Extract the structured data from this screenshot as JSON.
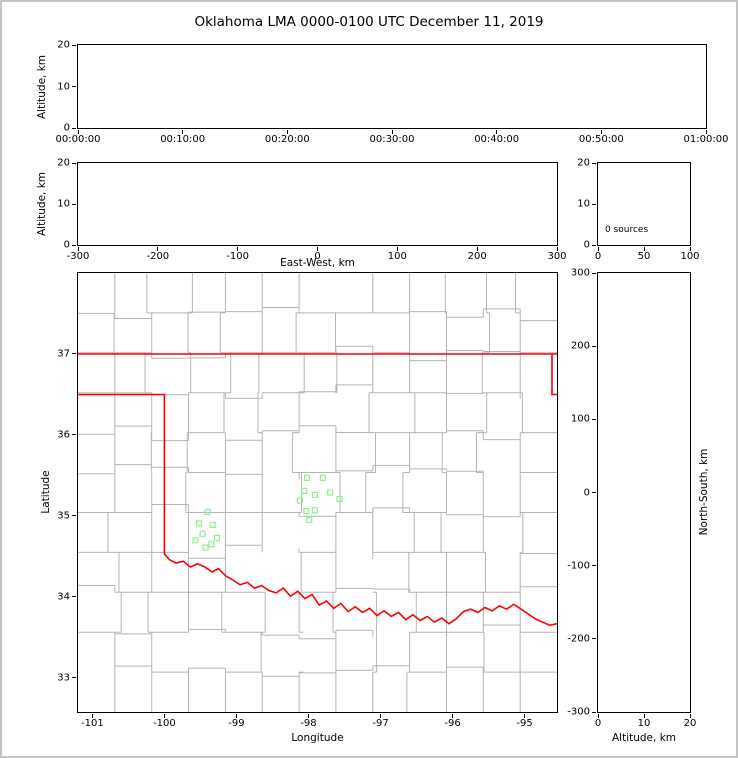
{
  "title": "Oklahoma LMA 0000-0100 UTC December 11, 2019",
  "chart_data": [
    {
      "panel": "time_height",
      "type": "scatter",
      "xlabel": "",
      "ylabel": "Altitude, km",
      "xticks": [
        "00:00:00",
        "00:10:00",
        "00:20:00",
        "00:30:00",
        "00:40:00",
        "00:50:00",
        "01:00:00"
      ],
      "yticks": [
        20,
        10,
        0
      ],
      "ylim": [
        0,
        20
      ],
      "series": []
    },
    {
      "panel": "east_west_height",
      "type": "scatter",
      "xlabel": "East-West, km",
      "ylabel": "Altitude, km",
      "xticks": [
        -300,
        -200,
        -100,
        0,
        100,
        200,
        300
      ],
      "xlim": [
        -300,
        300
      ],
      "yticks": [
        20,
        10,
        0
      ],
      "ylim": [
        0,
        20
      ],
      "series": []
    },
    {
      "panel": "altitude_histogram",
      "type": "line",
      "xticks": [
        0,
        50,
        100
      ],
      "xlim": [
        0,
        100
      ],
      "yticks": [
        20,
        10,
        0
      ],
      "ylim": [
        0,
        20
      ],
      "annotation": "0 sources",
      "series": []
    },
    {
      "panel": "plan_view",
      "type": "scatter",
      "xlabel": "Longitude",
      "ylabel": "Latitude",
      "xticks": [
        -101,
        -100,
        -99,
        -98,
        -97,
        -96,
        -95
      ],
      "xlim": [
        -101.2,
        -94.55
      ],
      "yticks": [
        37,
        36,
        35,
        34,
        33
      ],
      "ylim": [
        32.58,
        38.0
      ],
      "county_line_color": "#b5b5b5",
      "state_border_color": "#ff0000",
      "station_color": "#90ee90",
      "station_marker": "open-square",
      "station_marker_size": 5,
      "stations": [
        [
          -99.4,
          35.05
        ],
        [
          -99.52,
          34.91
        ],
        [
          -99.33,
          34.89
        ],
        [
          -99.47,
          34.78
        ],
        [
          -99.57,
          34.7
        ],
        [
          -99.27,
          34.73
        ],
        [
          -99.43,
          34.61
        ],
        [
          -99.35,
          34.65
        ],
        [
          -98.02,
          35.47
        ],
        [
          -97.8,
          35.47
        ],
        [
          -98.06,
          35.31
        ],
        [
          -97.91,
          35.26
        ],
        [
          -98.12,
          35.19
        ],
        [
          -97.7,
          35.29
        ],
        [
          -97.57,
          35.21
        ],
        [
          -98.03,
          35.06
        ],
        [
          -97.91,
          35.07
        ],
        [
          -97.99,
          34.95
        ]
      ],
      "state_border": [
        [
          [
            -101.2,
            37.0
          ],
          [
            -94.55,
            37.0
          ]
        ],
        [
          [
            -94.62,
            37.0
          ],
          [
            -94.62,
            36.5
          ],
          [
            -94.55,
            36.5
          ]
        ],
        [
          [
            -101.2,
            36.5
          ],
          [
            -100.0,
            36.5
          ],
          [
            -100.0,
            34.53
          ],
          [
            -99.93,
            34.46
          ],
          [
            -99.84,
            34.42
          ],
          [
            -99.74,
            34.44
          ],
          [
            -99.64,
            34.37
          ],
          [
            -99.54,
            34.41
          ],
          [
            -99.44,
            34.37
          ],
          [
            -99.34,
            34.31
          ],
          [
            -99.25,
            34.35
          ],
          [
            -99.15,
            34.26
          ],
          [
            -99.05,
            34.21
          ],
          [
            -98.95,
            34.15
          ],
          [
            -98.85,
            34.18
          ],
          [
            -98.75,
            34.11
          ],
          [
            -98.65,
            34.14
          ],
          [
            -98.55,
            34.08
          ],
          [
            -98.45,
            34.05
          ],
          [
            -98.35,
            34.11
          ],
          [
            -98.25,
            34.01
          ],
          [
            -98.15,
            34.07
          ],
          [
            -98.05,
            33.98
          ],
          [
            -97.95,
            34.03
          ],
          [
            -97.85,
            33.9
          ],
          [
            -97.75,
            33.95
          ],
          [
            -97.65,
            33.86
          ],
          [
            -97.55,
            33.92
          ],
          [
            -97.45,
            33.82
          ],
          [
            -97.35,
            33.88
          ],
          [
            -97.25,
            33.81
          ],
          [
            -97.15,
            33.86
          ],
          [
            -97.05,
            33.77
          ],
          [
            -96.95,
            33.83
          ],
          [
            -96.85,
            33.76
          ],
          [
            -96.75,
            33.81
          ],
          [
            -96.65,
            33.72
          ],
          [
            -96.55,
            33.78
          ],
          [
            -96.45,
            33.71
          ],
          [
            -96.35,
            33.76
          ],
          [
            -96.25,
            33.69
          ],
          [
            -96.15,
            33.74
          ],
          [
            -96.05,
            33.67
          ],
          [
            -95.95,
            33.73
          ],
          [
            -95.85,
            33.82
          ],
          [
            -95.75,
            33.85
          ],
          [
            -95.65,
            33.81
          ],
          [
            -95.55,
            33.87
          ],
          [
            -95.45,
            33.83
          ],
          [
            -95.35,
            33.89
          ],
          [
            -95.25,
            33.85
          ],
          [
            -95.15,
            33.91
          ],
          [
            -95.05,
            33.85
          ],
          [
            -94.95,
            33.79
          ],
          [
            -94.85,
            33.73
          ],
          [
            -94.75,
            33.69
          ],
          [
            -94.65,
            33.65
          ],
          [
            -94.55,
            33.67
          ]
        ]
      ]
    },
    {
      "panel": "north_south_height",
      "type": "scatter",
      "xlabel": "Altitude, km",
      "ylabel": "North-South, km",
      "xticks": [
        0,
        10,
        20
      ],
      "xlim": [
        0,
        20
      ],
      "yticks": [
        300,
        200,
        100,
        0,
        -100,
        -200,
        -300
      ],
      "ylim": [
        -300,
        300
      ],
      "series": []
    }
  ]
}
